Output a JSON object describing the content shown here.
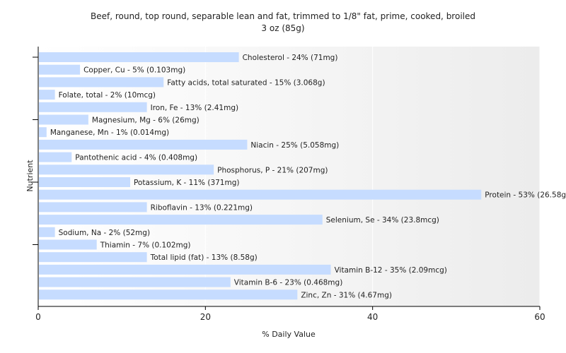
{
  "chart_data": {
    "type": "bar",
    "orientation": "horizontal",
    "title": "Beef, round, top round, separable lean and fat, trimmed to 1/8\" fat, prime, cooked, broiled",
    "subtitle": "3 oz (85g)",
    "xlabel": "% Daily Value",
    "ylabel": "Nutrient",
    "xlim": [
      0,
      60
    ],
    "xticks": [
      0,
      20,
      40,
      60
    ],
    "grid": true,
    "colors": {
      "bar": "#c6dcff",
      "background": "#ffffff",
      "grid": "#ffffff",
      "axis": "#000000"
    },
    "categories": [
      "Cholesterol",
      "Copper, Cu",
      "Fatty acids, total saturated",
      "Folate, total",
      "Iron, Fe",
      "Magnesium, Mg",
      "Manganese, Mn",
      "Niacin",
      "Pantothenic acid",
      "Phosphorus, P",
      "Potassium, K",
      "Protein",
      "Riboflavin",
      "Selenium, Se",
      "Sodium, Na",
      "Thiamin",
      "Total lipid (fat)",
      "Vitamin B-12",
      "Vitamin B-6",
      "Zinc, Zn"
    ],
    "values": [
      24,
      5,
      15,
      2,
      13,
      6,
      1,
      25,
      4,
      21,
      11,
      53,
      13,
      34,
      2,
      7,
      13,
      35,
      23,
      31
    ],
    "labels": [
      "Cholesterol - 24% (71mg)",
      "Copper, Cu - 5% (0.103mg)",
      "Fatty acids, total saturated - 15% (3.068g)",
      "Folate, total - 2% (10mcg)",
      "Iron, Fe - 13% (2.41mg)",
      "Magnesium, Mg - 6% (26mg)",
      "Manganese, Mn - 1% (0.014mg)",
      "Niacin - 25% (5.058mg)",
      "Pantothenic acid - 4% (0.408mg)",
      "Phosphorus, P - 21% (207mg)",
      "Potassium, K - 11% (371mg)",
      "Protein - 53% (26.58g)",
      "Riboflavin - 13% (0.221mg)",
      "Selenium, Se - 34% (23.8mcg)",
      "Sodium, Na - 2% (52mg)",
      "Thiamin - 7% (0.102mg)",
      "Total lipid (fat) - 13% (8.58g)",
      "Vitamin B-12 - 35% (2.09mcg)",
      "Vitamin B-6 - 23% (0.468mg)",
      "Zinc, Zn - 31% (4.67mg)"
    ]
  }
}
